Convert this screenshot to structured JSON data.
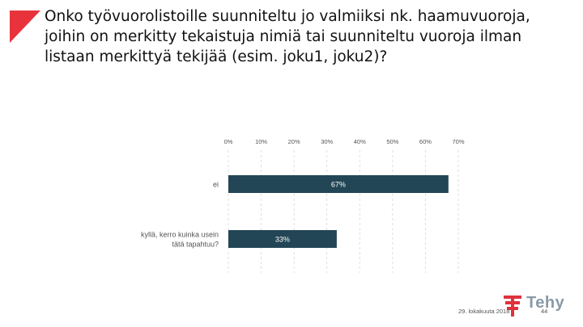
{
  "slide": {
    "title": "Onko työvuorolistoille suunniteltu jo valmiiksi nk. haamuvuoroja, joihin on merkitty tekaistuja nimiä tai suunniteltu vuoroja ilman listaan merkittyä tekijää (esim. joku1, joku2)?"
  },
  "colors": {
    "accent": "#e8333d",
    "bar": "#234656",
    "bar_label": "#ffffff",
    "logo_red": "#e0323c",
    "logo_gray": "#8a9aa6"
  },
  "icons": {
    "corner": "red-triangle-mark",
    "logo": "tehy-logo"
  },
  "chart_data": {
    "type": "bar",
    "orientation": "horizontal",
    "categories": [
      "ei",
      "kyllä, kerro kuinka usein tätä tapahtuu?"
    ],
    "category_lines": [
      [
        "ei"
      ],
      [
        "kyllä, kerro kuinka usein",
        "tätä tapahtuu?"
      ]
    ],
    "values": [
      67,
      33
    ],
    "data_labels": [
      "67%",
      "33%"
    ],
    "xlim": [
      0,
      70
    ],
    "x_ticks": [
      0,
      10,
      20,
      30,
      40,
      50,
      60,
      70
    ],
    "x_tick_labels": [
      "0%",
      "10%",
      "20%",
      "30%",
      "40%",
      "50%",
      "60%",
      "70%"
    ],
    "grid": true,
    "grid_style": "dashed",
    "legend": "none"
  },
  "footer": {
    "date": "29. lokakuuta 2018",
    "page": "44",
    "logo_text": "Tehy"
  }
}
